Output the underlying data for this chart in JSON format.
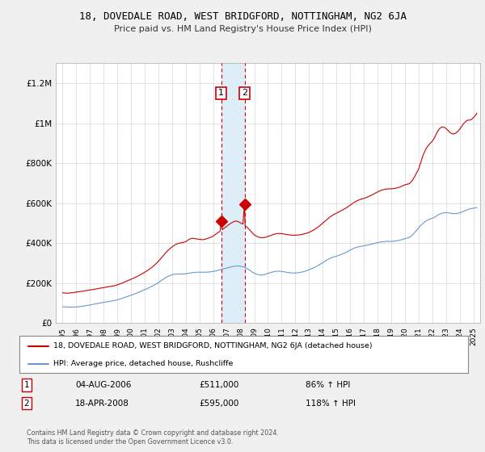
{
  "title": "18, DOVEDALE ROAD, WEST BRIDGFORD, NOTTINGHAM, NG2 6JA",
  "subtitle": "Price paid vs. HM Land Registry's House Price Index (HPI)",
  "legend_line1": "18, DOVEDALE ROAD, WEST BRIDGFORD, NOTTINGHAM, NG2 6JA (detached house)",
  "legend_line2": "HPI: Average price, detached house, Rushcliffe",
  "footer1": "Contains HM Land Registry data © Crown copyright and database right 2024.",
  "footer2": "This data is licensed under the Open Government Licence v3.0.",
  "table_row1": [
    "1",
    "04-AUG-2006",
    "£511,000",
    "86% ↑ HPI"
  ],
  "table_row2": [
    "2",
    "18-APR-2008",
    "£595,000",
    "118% ↑ HPI"
  ],
  "sale1_x": 2006.585,
  "sale1_y": 511000,
  "sale2_x": 2008.29,
  "sale2_y": 595000,
  "ylim": [
    0,
    1300000
  ],
  "xlim_left": 1994.5,
  "xlim_right": 2025.5,
  "red_color": "#cc0000",
  "blue_color": "#6699cc",
  "shade_color": "#ddeef8",
  "background_color": "#f0f0f0",
  "plot_bg": "#ffffff",
  "yticks": [
    0,
    200000,
    400000,
    600000,
    800000,
    1000000,
    1200000
  ],
  "ytick_labels": [
    "£0",
    "£200K",
    "£400K",
    "£600K",
    "£800K",
    "£1M",
    "£1.2M"
  ],
  "xticks": [
    1995,
    1996,
    1997,
    1998,
    1999,
    2000,
    2001,
    2002,
    2003,
    2004,
    2005,
    2006,
    2007,
    2008,
    2009,
    2010,
    2011,
    2012,
    2013,
    2014,
    2015,
    2016,
    2017,
    2018,
    2019,
    2020,
    2021,
    2022,
    2023,
    2024,
    2025
  ],
  "red_hpi_data": [
    [
      1995.0,
      152000
    ],
    [
      1995.08,
      151500
    ],
    [
      1995.17,
      151000
    ],
    [
      1995.25,
      150500
    ],
    [
      1995.33,
      150000
    ],
    [
      1995.42,
      150500
    ],
    [
      1995.5,
      151000
    ],
    [
      1995.58,
      151500
    ],
    [
      1995.67,
      152000
    ],
    [
      1995.75,
      153000
    ],
    [
      1995.83,
      154000
    ],
    [
      1995.92,
      155000
    ],
    [
      1996.0,
      156000
    ],
    [
      1996.17,
      157000
    ],
    [
      1996.33,
      158500
    ],
    [
      1996.5,
      160000
    ],
    [
      1996.67,
      162000
    ],
    [
      1996.83,
      164000
    ],
    [
      1997.0,
      166000
    ],
    [
      1997.17,
      168000
    ],
    [
      1997.33,
      170000
    ],
    [
      1997.5,
      172000
    ],
    [
      1997.67,
      174000
    ],
    [
      1997.83,
      176000
    ],
    [
      1998.0,
      178000
    ],
    [
      1998.17,
      180000
    ],
    [
      1998.33,
      182000
    ],
    [
      1998.5,
      184000
    ],
    [
      1998.67,
      186000
    ],
    [
      1998.83,
      188000
    ],
    [
      1999.0,
      192000
    ],
    [
      1999.17,
      196000
    ],
    [
      1999.33,
      200000
    ],
    [
      1999.5,
      205000
    ],
    [
      1999.67,
      210000
    ],
    [
      1999.83,
      215000
    ],
    [
      2000.0,
      220000
    ],
    [
      2000.17,
      225000
    ],
    [
      2000.33,
      230000
    ],
    [
      2000.5,
      236000
    ],
    [
      2000.67,
      242000
    ],
    [
      2000.83,
      248000
    ],
    [
      2001.0,
      255000
    ],
    [
      2001.17,
      262000
    ],
    [
      2001.33,
      270000
    ],
    [
      2001.5,
      278000
    ],
    [
      2001.67,
      288000
    ],
    [
      2001.83,
      298000
    ],
    [
      2002.0,
      310000
    ],
    [
      2002.17,
      323000
    ],
    [
      2002.33,
      336000
    ],
    [
      2002.5,
      350000
    ],
    [
      2002.67,
      362000
    ],
    [
      2002.83,
      372000
    ],
    [
      2003.0,
      382000
    ],
    [
      2003.17,
      390000
    ],
    [
      2003.33,
      396000
    ],
    [
      2003.5,
      400000
    ],
    [
      2003.67,
      402000
    ],
    [
      2003.83,
      404000
    ],
    [
      2004.0,
      408000
    ],
    [
      2004.08,
      412000
    ],
    [
      2004.17,
      416000
    ],
    [
      2004.25,
      420000
    ],
    [
      2004.33,
      422000
    ],
    [
      2004.42,
      424000
    ],
    [
      2004.5,
      425000
    ],
    [
      2004.58,
      424000
    ],
    [
      2004.67,
      423000
    ],
    [
      2004.75,
      422000
    ],
    [
      2004.83,
      421000
    ],
    [
      2004.92,
      420000
    ],
    [
      2005.0,
      420000
    ],
    [
      2005.08,
      419000
    ],
    [
      2005.17,
      418000
    ],
    [
      2005.25,
      418000
    ],
    [
      2005.33,
      419000
    ],
    [
      2005.42,
      420000
    ],
    [
      2005.5,
      422000
    ],
    [
      2005.58,
      424000
    ],
    [
      2005.67,
      426000
    ],
    [
      2005.75,
      428000
    ],
    [
      2005.83,
      430000
    ],
    [
      2005.92,
      432000
    ],
    [
      2006.0,
      436000
    ],
    [
      2006.08,
      440000
    ],
    [
      2006.17,
      444000
    ],
    [
      2006.25,
      448000
    ],
    [
      2006.33,
      452000
    ],
    [
      2006.42,
      456000
    ],
    [
      2006.5,
      460000
    ],
    [
      2006.585,
      511000
    ],
    [
      2006.67,
      468000
    ],
    [
      2006.75,
      472000
    ],
    [
      2006.83,
      476000
    ],
    [
      2006.92,
      480000
    ],
    [
      2007.0,
      485000
    ],
    [
      2007.08,
      490000
    ],
    [
      2007.17,
      494000
    ],
    [
      2007.25,
      498000
    ],
    [
      2007.33,
      502000
    ],
    [
      2007.42,
      505000
    ],
    [
      2007.5,
      508000
    ],
    [
      2007.58,
      510000
    ],
    [
      2007.67,
      511000
    ],
    [
      2007.75,
      510000
    ],
    [
      2007.83,
      508000
    ],
    [
      2007.92,
      505000
    ],
    [
      2008.0,
      501000
    ],
    [
      2008.17,
      496000
    ],
    [
      2008.29,
      595000
    ],
    [
      2008.33,
      488000
    ],
    [
      2008.5,
      478000
    ],
    [
      2008.67,
      466000
    ],
    [
      2008.83,
      454000
    ],
    [
      2009.0,
      442000
    ],
    [
      2009.17,
      435000
    ],
    [
      2009.33,
      430000
    ],
    [
      2009.5,
      428000
    ],
    [
      2009.67,
      428000
    ],
    [
      2009.83,
      430000
    ],
    [
      2010.0,
      434000
    ],
    [
      2010.17,
      438000
    ],
    [
      2010.33,
      442000
    ],
    [
      2010.5,
      446000
    ],
    [
      2010.67,
      448000
    ],
    [
      2010.83,
      449000
    ],
    [
      2011.0,
      448000
    ],
    [
      2011.17,
      446000
    ],
    [
      2011.33,
      444000
    ],
    [
      2011.5,
      442000
    ],
    [
      2011.67,
      441000
    ],
    [
      2011.83,
      440000
    ],
    [
      2012.0,
      440000
    ],
    [
      2012.17,
      441000
    ],
    [
      2012.33,
      442000
    ],
    [
      2012.5,
      444000
    ],
    [
      2012.67,
      447000
    ],
    [
      2012.83,
      450000
    ],
    [
      2013.0,
      454000
    ],
    [
      2013.17,
      460000
    ],
    [
      2013.33,
      466000
    ],
    [
      2013.5,
      473000
    ],
    [
      2013.67,
      481000
    ],
    [
      2013.83,
      490000
    ],
    [
      2014.0,
      500000
    ],
    [
      2014.17,
      510000
    ],
    [
      2014.33,
      520000
    ],
    [
      2014.5,
      530000
    ],
    [
      2014.67,
      538000
    ],
    [
      2014.83,
      545000
    ],
    [
      2015.0,
      550000
    ],
    [
      2015.17,
      556000
    ],
    [
      2015.33,
      562000
    ],
    [
      2015.5,
      568000
    ],
    [
      2015.67,
      575000
    ],
    [
      2015.83,
      582000
    ],
    [
      2016.0,
      590000
    ],
    [
      2016.17,
      598000
    ],
    [
      2016.33,
      606000
    ],
    [
      2016.5,
      612000
    ],
    [
      2016.67,
      617000
    ],
    [
      2016.83,
      621000
    ],
    [
      2017.0,
      624000
    ],
    [
      2017.17,
      628000
    ],
    [
      2017.33,
      633000
    ],
    [
      2017.5,
      638000
    ],
    [
      2017.67,
      644000
    ],
    [
      2017.83,
      650000
    ],
    [
      2018.0,
      656000
    ],
    [
      2018.17,
      662000
    ],
    [
      2018.33,
      666000
    ],
    [
      2018.5,
      669000
    ],
    [
      2018.67,
      671000
    ],
    [
      2018.83,
      672000
    ],
    [
      2019.0,
      672000
    ],
    [
      2019.17,
      673000
    ],
    [
      2019.33,
      675000
    ],
    [
      2019.5,
      678000
    ],
    [
      2019.67,
      682000
    ],
    [
      2019.83,
      687000
    ],
    [
      2020.0,
      692000
    ],
    [
      2020.17,
      695000
    ],
    [
      2020.33,
      698000
    ],
    [
      2020.5,
      710000
    ],
    [
      2020.67,
      728000
    ],
    [
      2020.83,
      748000
    ],
    [
      2021.0,
      770000
    ],
    [
      2021.08,
      788000
    ],
    [
      2021.17,
      806000
    ],
    [
      2021.25,
      824000
    ],
    [
      2021.33,
      840000
    ],
    [
      2021.42,
      854000
    ],
    [
      2021.5,
      866000
    ],
    [
      2021.58,
      876000
    ],
    [
      2021.67,
      885000
    ],
    [
      2021.75,
      892000
    ],
    [
      2021.83,
      898000
    ],
    [
      2021.92,
      904000
    ],
    [
      2022.0,
      910000
    ],
    [
      2022.08,
      918000
    ],
    [
      2022.17,
      928000
    ],
    [
      2022.25,
      940000
    ],
    [
      2022.33,
      952000
    ],
    [
      2022.42,
      962000
    ],
    [
      2022.5,
      970000
    ],
    [
      2022.58,
      976000
    ],
    [
      2022.67,
      980000
    ],
    [
      2022.75,
      982000
    ],
    [
      2022.83,
      981000
    ],
    [
      2022.92,
      978000
    ],
    [
      2023.0,
      974000
    ],
    [
      2023.08,
      969000
    ],
    [
      2023.17,
      963000
    ],
    [
      2023.25,
      957000
    ],
    [
      2023.33,
      952000
    ],
    [
      2023.42,
      949000
    ],
    [
      2023.5,
      947000
    ],
    [
      2023.58,
      947000
    ],
    [
      2023.67,
      949000
    ],
    [
      2023.75,
      952000
    ],
    [
      2023.83,
      957000
    ],
    [
      2023.92,
      963000
    ],
    [
      2024.0,
      970000
    ],
    [
      2024.08,
      978000
    ],
    [
      2024.17,
      986000
    ],
    [
      2024.25,
      994000
    ],
    [
      2024.33,
      1001000
    ],
    [
      2024.42,
      1007000
    ],
    [
      2024.5,
      1012000
    ],
    [
      2024.58,
      1015000
    ],
    [
      2024.67,
      1016000
    ],
    [
      2024.75,
      1016000
    ],
    [
      2024.83,
      1018000
    ],
    [
      2024.92,
      1022000
    ],
    [
      2025.0,
      1028000
    ],
    [
      2025.17,
      1040000
    ],
    [
      2025.25,
      1050000
    ]
  ],
  "blue_hpi_data": [
    [
      1995.0,
      82000
    ],
    [
      1995.17,
      81500
    ],
    [
      1995.33,
      81000
    ],
    [
      1995.5,
      80500
    ],
    [
      1995.67,
      80000
    ],
    [
      1995.83,
      80500
    ],
    [
      1996.0,
      81000
    ],
    [
      1996.17,
      82000
    ],
    [
      1996.33,
      83500
    ],
    [
      1996.5,
      85000
    ],
    [
      1996.67,
      87000
    ],
    [
      1996.83,
      89000
    ],
    [
      1997.0,
      91000
    ],
    [
      1997.17,
      93000
    ],
    [
      1997.33,
      95500
    ],
    [
      1997.5,
      98000
    ],
    [
      1997.67,
      100000
    ],
    [
      1997.83,
      102000
    ],
    [
      1998.0,
      104000
    ],
    [
      1998.17,
      106000
    ],
    [
      1998.33,
      108000
    ],
    [
      1998.5,
      110000
    ],
    [
      1998.67,
      112000
    ],
    [
      1998.83,
      114000
    ],
    [
      1999.0,
      117000
    ],
    [
      1999.17,
      120000
    ],
    [
      1999.33,
      124000
    ],
    [
      1999.5,
      128000
    ],
    [
      1999.67,
      132000
    ],
    [
      1999.83,
      136000
    ],
    [
      2000.0,
      140000
    ],
    [
      2000.17,
      144000
    ],
    [
      2000.33,
      148000
    ],
    [
      2000.5,
      153000
    ],
    [
      2000.67,
      158000
    ],
    [
      2000.83,
      163000
    ],
    [
      2001.0,
      168000
    ],
    [
      2001.17,
      173000
    ],
    [
      2001.33,
      178000
    ],
    [
      2001.5,
      184000
    ],
    [
      2001.67,
      190000
    ],
    [
      2001.83,
      196000
    ],
    [
      2002.0,
      203000
    ],
    [
      2002.17,
      211000
    ],
    [
      2002.33,
      219000
    ],
    [
      2002.5,
      227000
    ],
    [
      2002.67,
      233000
    ],
    [
      2002.83,
      238000
    ],
    [
      2003.0,
      242000
    ],
    [
      2003.17,
      245000
    ],
    [
      2003.33,
      246000
    ],
    [
      2003.5,
      246000
    ],
    [
      2003.67,
      246000
    ],
    [
      2003.83,
      246000
    ],
    [
      2004.0,
      247000
    ],
    [
      2004.17,
      249000
    ],
    [
      2004.33,
      251000
    ],
    [
      2004.5,
      253000
    ],
    [
      2004.67,
      254000
    ],
    [
      2004.83,
      255000
    ],
    [
      2005.0,
      255000
    ],
    [
      2005.17,
      255000
    ],
    [
      2005.33,
      255000
    ],
    [
      2005.5,
      255000
    ],
    [
      2005.67,
      256000
    ],
    [
      2005.83,
      257000
    ],
    [
      2006.0,
      259000
    ],
    [
      2006.17,
      261000
    ],
    [
      2006.33,
      264000
    ],
    [
      2006.5,
      267000
    ],
    [
      2006.67,
      270000
    ],
    [
      2006.83,
      273000
    ],
    [
      2007.0,
      276000
    ],
    [
      2007.17,
      279000
    ],
    [
      2007.33,
      282000
    ],
    [
      2007.5,
      285000
    ],
    [
      2007.67,
      286000
    ],
    [
      2007.83,
      286000
    ],
    [
      2008.0,
      285000
    ],
    [
      2008.17,
      282000
    ],
    [
      2008.33,
      278000
    ],
    [
      2008.5,
      272000
    ],
    [
      2008.67,
      265000
    ],
    [
      2008.83,
      257000
    ],
    [
      2009.0,
      250000
    ],
    [
      2009.17,
      245000
    ],
    [
      2009.33,
      242000
    ],
    [
      2009.5,
      241000
    ],
    [
      2009.67,
      242000
    ],
    [
      2009.83,
      245000
    ],
    [
      2010.0,
      249000
    ],
    [
      2010.17,
      253000
    ],
    [
      2010.33,
      256000
    ],
    [
      2010.5,
      259000
    ],
    [
      2010.67,
      260000
    ],
    [
      2010.83,
      260000
    ],
    [
      2011.0,
      259000
    ],
    [
      2011.17,
      257000
    ],
    [
      2011.33,
      255000
    ],
    [
      2011.5,
      253000
    ],
    [
      2011.67,
      252000
    ],
    [
      2011.83,
      251000
    ],
    [
      2012.0,
      251000
    ],
    [
      2012.17,
      252000
    ],
    [
      2012.33,
      254000
    ],
    [
      2012.5,
      256000
    ],
    [
      2012.67,
      259000
    ],
    [
      2012.83,
      263000
    ],
    [
      2013.0,
      267000
    ],
    [
      2013.17,
      272000
    ],
    [
      2013.33,
      277000
    ],
    [
      2013.5,
      283000
    ],
    [
      2013.67,
      289000
    ],
    [
      2013.83,
      296000
    ],
    [
      2014.0,
      303000
    ],
    [
      2014.17,
      310000
    ],
    [
      2014.33,
      317000
    ],
    [
      2014.5,
      323000
    ],
    [
      2014.67,
      328000
    ],
    [
      2014.83,
      332000
    ],
    [
      2015.0,
      335000
    ],
    [
      2015.17,
      339000
    ],
    [
      2015.33,
      343000
    ],
    [
      2015.5,
      348000
    ],
    [
      2015.67,
      353000
    ],
    [
      2015.83,
      359000
    ],
    [
      2016.0,
      365000
    ],
    [
      2016.17,
      371000
    ],
    [
      2016.33,
      376000
    ],
    [
      2016.5,
      380000
    ],
    [
      2016.67,
      383000
    ],
    [
      2016.83,
      385000
    ],
    [
      2017.0,
      387000
    ],
    [
      2017.17,
      389000
    ],
    [
      2017.33,
      391000
    ],
    [
      2017.5,
      394000
    ],
    [
      2017.67,
      397000
    ],
    [
      2017.83,
      400000
    ],
    [
      2018.0,
      403000
    ],
    [
      2018.17,
      405000
    ],
    [
      2018.33,
      407000
    ],
    [
      2018.5,
      408000
    ],
    [
      2018.67,
      409000
    ],
    [
      2018.83,
      409000
    ],
    [
      2019.0,
      409000
    ],
    [
      2019.17,
      410000
    ],
    [
      2019.33,
      411000
    ],
    [
      2019.5,
      413000
    ],
    [
      2019.67,
      416000
    ],
    [
      2019.83,
      419000
    ],
    [
      2020.0,
      423000
    ],
    [
      2020.17,
      426000
    ],
    [
      2020.33,
      429000
    ],
    [
      2020.5,
      438000
    ],
    [
      2020.67,
      450000
    ],
    [
      2020.83,
      463000
    ],
    [
      2021.0,
      476000
    ],
    [
      2021.17,
      489000
    ],
    [
      2021.33,
      500000
    ],
    [
      2021.5,
      509000
    ],
    [
      2021.67,
      516000
    ],
    [
      2021.83,
      521000
    ],
    [
      2022.0,
      525000
    ],
    [
      2022.17,
      530000
    ],
    [
      2022.33,
      537000
    ],
    [
      2022.5,
      544000
    ],
    [
      2022.67,
      549000
    ],
    [
      2022.83,
      552000
    ],
    [
      2023.0,
      553000
    ],
    [
      2023.17,
      552000
    ],
    [
      2023.33,
      550000
    ],
    [
      2023.5,
      548000
    ],
    [
      2023.67,
      548000
    ],
    [
      2023.83,
      549000
    ],
    [
      2024.0,
      552000
    ],
    [
      2024.17,
      556000
    ],
    [
      2024.33,
      561000
    ],
    [
      2024.5,
      566000
    ],
    [
      2024.67,
      570000
    ],
    [
      2024.83,
      573000
    ],
    [
      2025.0,
      575000
    ],
    [
      2025.25,
      578000
    ]
  ]
}
